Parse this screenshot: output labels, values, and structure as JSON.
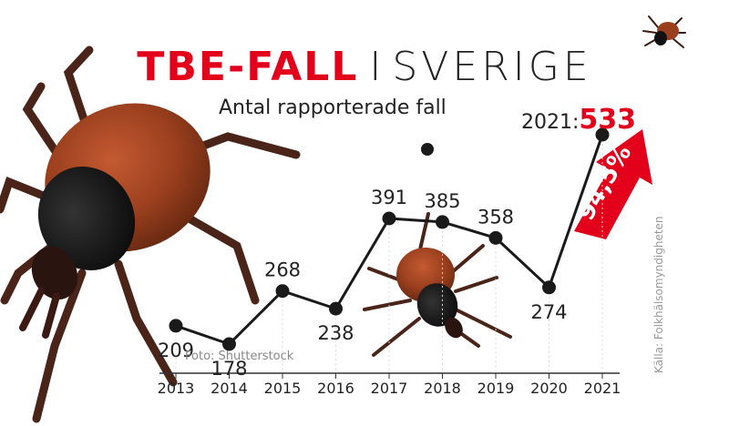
{
  "header": {
    "title_bold": "TBE-FALL",
    "title_separator": "I",
    "title_light": "SVERIGE",
    "subtitle": "Antal rapporterade fall"
  },
  "credit": "Foto: Shutterstock",
  "source": "Källa: Folkhälsomyndigheten",
  "highlight": {
    "year_label": "2021:",
    "value": "533",
    "change": "94,5%"
  },
  "colors": {
    "accent": "#e2001a",
    "line": "#1a1a1a",
    "tick_body": "#8a3a1c"
  },
  "chart_data": {
    "type": "line",
    "x": [
      "2013",
      "2014",
      "2015",
      "2016",
      "2017",
      "2018",
      "2019",
      "2020",
      "2021"
    ],
    "series": [
      {
        "values": [
          209,
          178,
          268,
          238,
          391,
          385,
          358,
          274,
          533
        ]
      }
    ],
    "ylim": [
      100,
      560
    ],
    "data_labels": [
      "209",
      "178",
      "268",
      "238",
      "391",
      "385",
      "358",
      "274",
      ""
    ],
    "grid": false
  }
}
